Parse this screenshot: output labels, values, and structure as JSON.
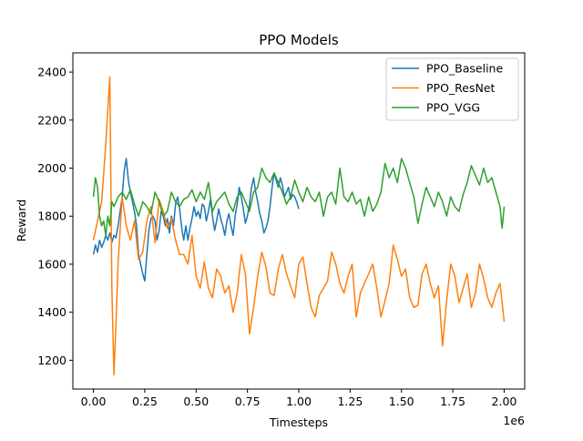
{
  "chart_data": {
    "type": "line",
    "title": "PPO Models",
    "xlabel": "Timesteps",
    "ylabel": "Reward",
    "x_offset_label": "1e6",
    "xlim": [
      -0.1,
      2.1
    ],
    "ylim": [
      1080,
      2480
    ],
    "x_ticks": [
      0.0,
      0.25,
      0.5,
      0.75,
      1.0,
      1.25,
      1.5,
      1.75,
      2.0
    ],
    "x_tick_labels": [
      "0.00",
      "0.25",
      "0.50",
      "0.75",
      "1.00",
      "1.25",
      "1.50",
      "1.75",
      "2.00"
    ],
    "y_ticks": [
      1200,
      1400,
      1600,
      1800,
      2000,
      2200,
      2400
    ],
    "y_tick_labels": [
      "1200",
      "1400",
      "1600",
      "1800",
      "2000",
      "2200",
      "2400"
    ],
    "legend_position": "top-right",
    "grid": false,
    "series": [
      {
        "name": "PPO_Baseline",
        "color": "#1f77b4",
        "x": [
          0.0,
          0.01,
          0.02,
          0.03,
          0.04,
          0.05,
          0.06,
          0.07,
          0.08,
          0.09,
          0.1,
          0.11,
          0.12,
          0.13,
          0.14,
          0.15,
          0.16,
          0.17,
          0.18,
          0.19,
          0.2,
          0.21,
          0.22,
          0.23,
          0.24,
          0.25,
          0.26,
          0.27,
          0.28,
          0.29,
          0.3,
          0.31,
          0.32,
          0.33,
          0.34,
          0.35,
          0.36,
          0.37,
          0.38,
          0.39,
          0.4,
          0.41,
          0.42,
          0.43,
          0.44,
          0.45,
          0.46,
          0.47,
          0.48,
          0.49,
          0.5,
          0.51,
          0.52,
          0.53,
          0.54,
          0.55,
          0.56,
          0.57,
          0.58,
          0.59,
          0.6,
          0.61,
          0.62,
          0.63,
          0.64,
          0.65,
          0.66,
          0.67,
          0.68,
          0.69,
          0.7,
          0.71,
          0.72,
          0.73,
          0.74,
          0.75,
          0.76,
          0.77,
          0.78,
          0.79,
          0.8,
          0.81,
          0.82,
          0.83,
          0.84,
          0.85,
          0.86,
          0.87,
          0.88,
          0.89,
          0.9,
          0.91,
          0.92,
          0.93,
          0.94,
          0.95,
          0.96,
          0.97,
          0.98,
          0.99,
          1.0
        ],
        "y": [
          1640,
          1680,
          1650,
          1700,
          1670,
          1690,
          1720,
          1700,
          1730,
          1690,
          1720,
          1710,
          1760,
          1820,
          1880,
          1990,
          2040,
          1950,
          1900,
          1860,
          1820,
          1760,
          1640,
          1600,
          1560,
          1530,
          1640,
          1740,
          1790,
          1800,
          1780,
          1700,
          1740,
          1820,
          1800,
          1760,
          1790,
          1730,
          1800,
          1760,
          1850,
          1880,
          1830,
          1750,
          1700,
          1760,
          1700,
          1750,
          1790,
          1840,
          1800,
          1820,
          1790,
          1850,
          1840,
          1780,
          1820,
          1870,
          1800,
          1740,
          1780,
          1830,
          1790,
          1760,
          1720,
          1780,
          1810,
          1760,
          1720,
          1800,
          1850,
          1920,
          1880,
          1830,
          1770,
          1800,
          1850,
          1920,
          1960,
          1900,
          1860,
          1810,
          1780,
          1730,
          1750,
          1780,
          1840,
          1920,
          1980,
          1950,
          1920,
          1960,
          1930,
          1880,
          1900,
          1920,
          1870,
          1890,
          1880,
          1860,
          1830
        ]
      },
      {
        "name": "PPO_ResNet",
        "color": "#ff7f0e",
        "x": [
          0.0,
          0.02,
          0.04,
          0.06,
          0.07,
          0.08,
          0.09,
          0.1,
          0.11,
          0.12,
          0.14,
          0.16,
          0.18,
          0.2,
          0.22,
          0.24,
          0.26,
          0.28,
          0.3,
          0.32,
          0.34,
          0.36,
          0.38,
          0.4,
          0.42,
          0.44,
          0.46,
          0.48,
          0.5,
          0.52,
          0.54,
          0.56,
          0.58,
          0.6,
          0.62,
          0.64,
          0.66,
          0.68,
          0.7,
          0.72,
          0.74,
          0.76,
          0.78,
          0.8,
          0.82,
          0.84,
          0.86,
          0.88,
          0.9,
          0.92,
          0.94,
          0.96,
          0.98,
          1.0,
          1.02,
          1.04,
          1.06,
          1.08,
          1.1,
          1.12,
          1.14,
          1.16,
          1.18,
          1.2,
          1.22,
          1.24,
          1.26,
          1.28,
          1.3,
          1.32,
          1.34,
          1.36,
          1.38,
          1.4,
          1.42,
          1.44,
          1.46,
          1.48,
          1.5,
          1.52,
          1.54,
          1.56,
          1.58,
          1.6,
          1.62,
          1.64,
          1.66,
          1.68,
          1.7,
          1.72,
          1.74,
          1.76,
          1.78,
          1.8,
          1.82,
          1.84,
          1.86,
          1.88,
          1.9,
          1.92,
          1.94,
          1.96,
          1.98,
          2.0
        ],
        "y": [
          1700,
          1780,
          1860,
          2100,
          2240,
          2380,
          1500,
          1140,
          1350,
          1600,
          1880,
          1760,
          1700,
          1780,
          1620,
          1650,
          1780,
          1840,
          1690,
          1870,
          1820,
          1750,
          1790,
          1700,
          1640,
          1640,
          1600,
          1720,
          1550,
          1500,
          1610,
          1500,
          1460,
          1580,
          1550,
          1480,
          1510,
          1400,
          1480,
          1640,
          1560,
          1310,
          1420,
          1550,
          1650,
          1590,
          1480,
          1470,
          1580,
          1640,
          1560,
          1510,
          1460,
          1600,
          1630,
          1520,
          1420,
          1380,
          1470,
          1500,
          1530,
          1650,
          1600,
          1520,
          1480,
          1550,
          1600,
          1380,
          1480,
          1520,
          1560,
          1600,
          1500,
          1380,
          1450,
          1520,
          1680,
          1620,
          1550,
          1580,
          1460,
          1420,
          1430,
          1560,
          1600,
          1520,
          1460,
          1510,
          1260,
          1450,
          1600,
          1550,
          1440,
          1500,
          1560,
          1420,
          1480,
          1600,
          1540,
          1460,
          1420,
          1480,
          1520,
          1360
        ]
      },
      {
        "name": "PPO_VGG",
        "color": "#2ca02c",
        "x": [
          0.0,
          0.01,
          0.02,
          0.03,
          0.04,
          0.05,
          0.06,
          0.07,
          0.08,
          0.09,
          0.1,
          0.12,
          0.14,
          0.16,
          0.18,
          0.2,
          0.22,
          0.24,
          0.26,
          0.28,
          0.3,
          0.32,
          0.34,
          0.36,
          0.38,
          0.4,
          0.42,
          0.44,
          0.46,
          0.48,
          0.5,
          0.52,
          0.54,
          0.56,
          0.58,
          0.6,
          0.62,
          0.64,
          0.66,
          0.68,
          0.7,
          0.72,
          0.74,
          0.76,
          0.78,
          0.8,
          0.82,
          0.84,
          0.86,
          0.88,
          0.9,
          0.92,
          0.94,
          0.96,
          0.98,
          1.0,
          1.02,
          1.04,
          1.06,
          1.08,
          1.1,
          1.12,
          1.14,
          1.16,
          1.18,
          1.2,
          1.22,
          1.24,
          1.26,
          1.28,
          1.3,
          1.32,
          1.34,
          1.36,
          1.38,
          1.4,
          1.42,
          1.44,
          1.46,
          1.48,
          1.5,
          1.52,
          1.54,
          1.56,
          1.58,
          1.6,
          1.62,
          1.64,
          1.66,
          1.68,
          1.7,
          1.72,
          1.74,
          1.76,
          1.78,
          1.8,
          1.82,
          1.84,
          1.86,
          1.88,
          1.9,
          1.92,
          1.94,
          1.96,
          1.98,
          1.99,
          2.0
        ],
        "y": [
          1880,
          1960,
          1920,
          1800,
          1760,
          1780,
          1720,
          1800,
          1760,
          1860,
          1840,
          1880,
          1900,
          1870,
          1910,
          1850,
          1800,
          1860,
          1840,
          1810,
          1900,
          1860,
          1800,
          1820,
          1900,
          1860,
          1840,
          1870,
          1880,
          1910,
          1860,
          1900,
          1870,
          1940,
          1820,
          1860,
          1880,
          1900,
          1850,
          1820,
          1880,
          1900,
          1860,
          1820,
          1900,
          1920,
          2000,
          1960,
          1940,
          1980,
          1940,
          1900,
          1850,
          1880,
          1950,
          1900,
          1860,
          1920,
          1880,
          1860,
          1900,
          1800,
          1880,
          1900,
          1850,
          2000,
          1880,
          1860,
          1900,
          1850,
          1870,
          1800,
          1880,
          1820,
          1850,
          1900,
          2020,
          1960,
          2000,
          1940,
          2040,
          2000,
          1940,
          1880,
          1770,
          1850,
          1920,
          1880,
          1840,
          1900,
          1860,
          1800,
          1880,
          1840,
          1820,
          1890,
          1940,
          2010,
          1970,
          1930,
          2000,
          1940,
          1960,
          1900,
          1840,
          1750,
          1840
        ]
      }
    ]
  }
}
